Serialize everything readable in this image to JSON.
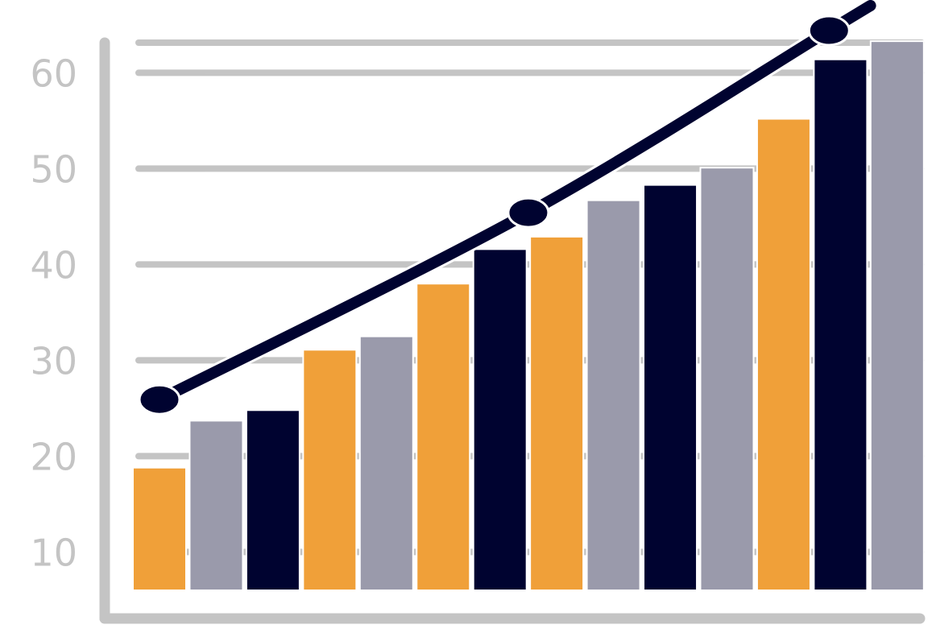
{
  "chart_data": {
    "type": "bar",
    "yticks": [
      "10",
      "20",
      "30",
      "40",
      "50",
      "60"
    ],
    "ylim": [
      6,
      67.5
    ],
    "grid": true,
    "bars": [
      {
        "value": 18.8,
        "color": "#f0a039"
      },
      {
        "value": 23.7,
        "color": "#9a9aab"
      },
      {
        "value": 24.8,
        "color": "#000330"
      },
      {
        "value": 31.1,
        "color": "#f0a039"
      },
      {
        "value": 32.5,
        "color": "#9a9aab"
      },
      {
        "value": 38.0,
        "color": "#f0a039"
      },
      {
        "value": 41.6,
        "color": "#000330"
      },
      {
        "value": 42.9,
        "color": "#f0a039"
      },
      {
        "value": 46.7,
        "color": "#9a9aab"
      },
      {
        "value": 48.3,
        "color": "#000330"
      },
      {
        "value": 50.1,
        "color": "#9a9aab"
      },
      {
        "value": 55.2,
        "color": "#f0a039"
      },
      {
        "value": 61.4,
        "color": "#000330"
      },
      {
        "value": 63.3,
        "color": "#9a9aab"
      }
    ],
    "trend_line": {
      "color": "#000330",
      "points": [
        {
          "bar": 0,
          "value": 25.9
        },
        {
          "bar": 6.5,
          "value": 45.4
        },
        {
          "bar": 11.8,
          "value": 64.4
        }
      ]
    },
    "colors": {
      "axis": "#c4c4c4",
      "grid": "#c4c4c4",
      "tick_text": "#c4c4c4"
    }
  }
}
